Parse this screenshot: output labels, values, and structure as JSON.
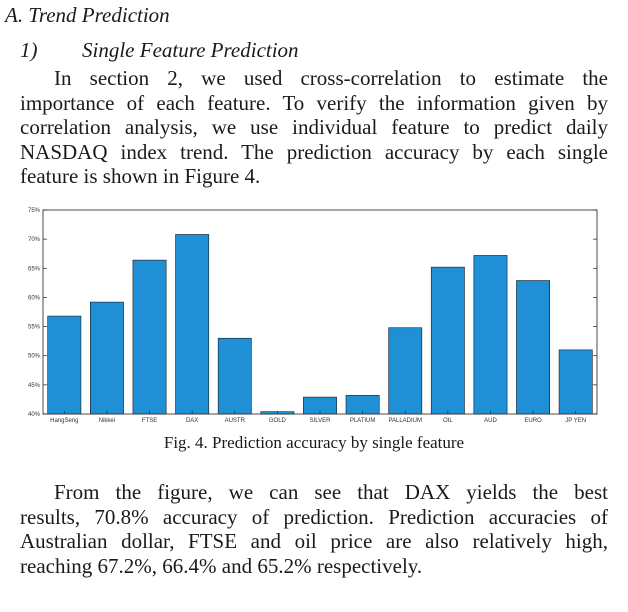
{
  "section_heading": "A. Trend Prediction",
  "subsection": {
    "number": "1)",
    "title": "Single Feature Prediction"
  },
  "paragraph1": {
    "lines": [
      "In section 2, we used cross-correlation to estimate the",
      "importance of each feature. To verify the information given by",
      "correlation analysis, we use individual feature to predict daily",
      "NASDAQ index trend. The prediction accuracy by each single",
      "feature is shown in Figure 4."
    ]
  },
  "chart_data": {
    "type": "bar",
    "title": "",
    "xlabel": "",
    "ylabel": "",
    "ylim": [
      40,
      75
    ],
    "y_ticks": [
      "40%",
      "45%",
      "50%",
      "55%",
      "60%",
      "65%",
      "70%",
      "75%"
    ],
    "categories": [
      "HangSeng",
      "Nikkei",
      "FTSE",
      "DAX",
      "AUSTR",
      "GOLD",
      "SILVER",
      "PLATIUM",
      "PALLADIUM",
      "OIL",
      "AUD",
      "EURO",
      "JP YEN"
    ],
    "values": [
      56.8,
      59.2,
      66.4,
      70.8,
      53.0,
      40.4,
      42.9,
      43.2,
      54.8,
      65.2,
      67.2,
      62.9,
      51.0
    ],
    "bar_color": "#1f8fd6"
  },
  "caption": "Fig. 4.   Prediction accuracy by single feature",
  "paragraph2": {
    "lines": [
      "From the figure, we can see that DAX yields the best",
      "results, 70.8% accuracy of prediction. Prediction accuracies of",
      "Australian dollar, FTSE and oil price are also relatively high,",
      "reaching 67.2%, 66.4% and 65.2% respectively."
    ]
  }
}
